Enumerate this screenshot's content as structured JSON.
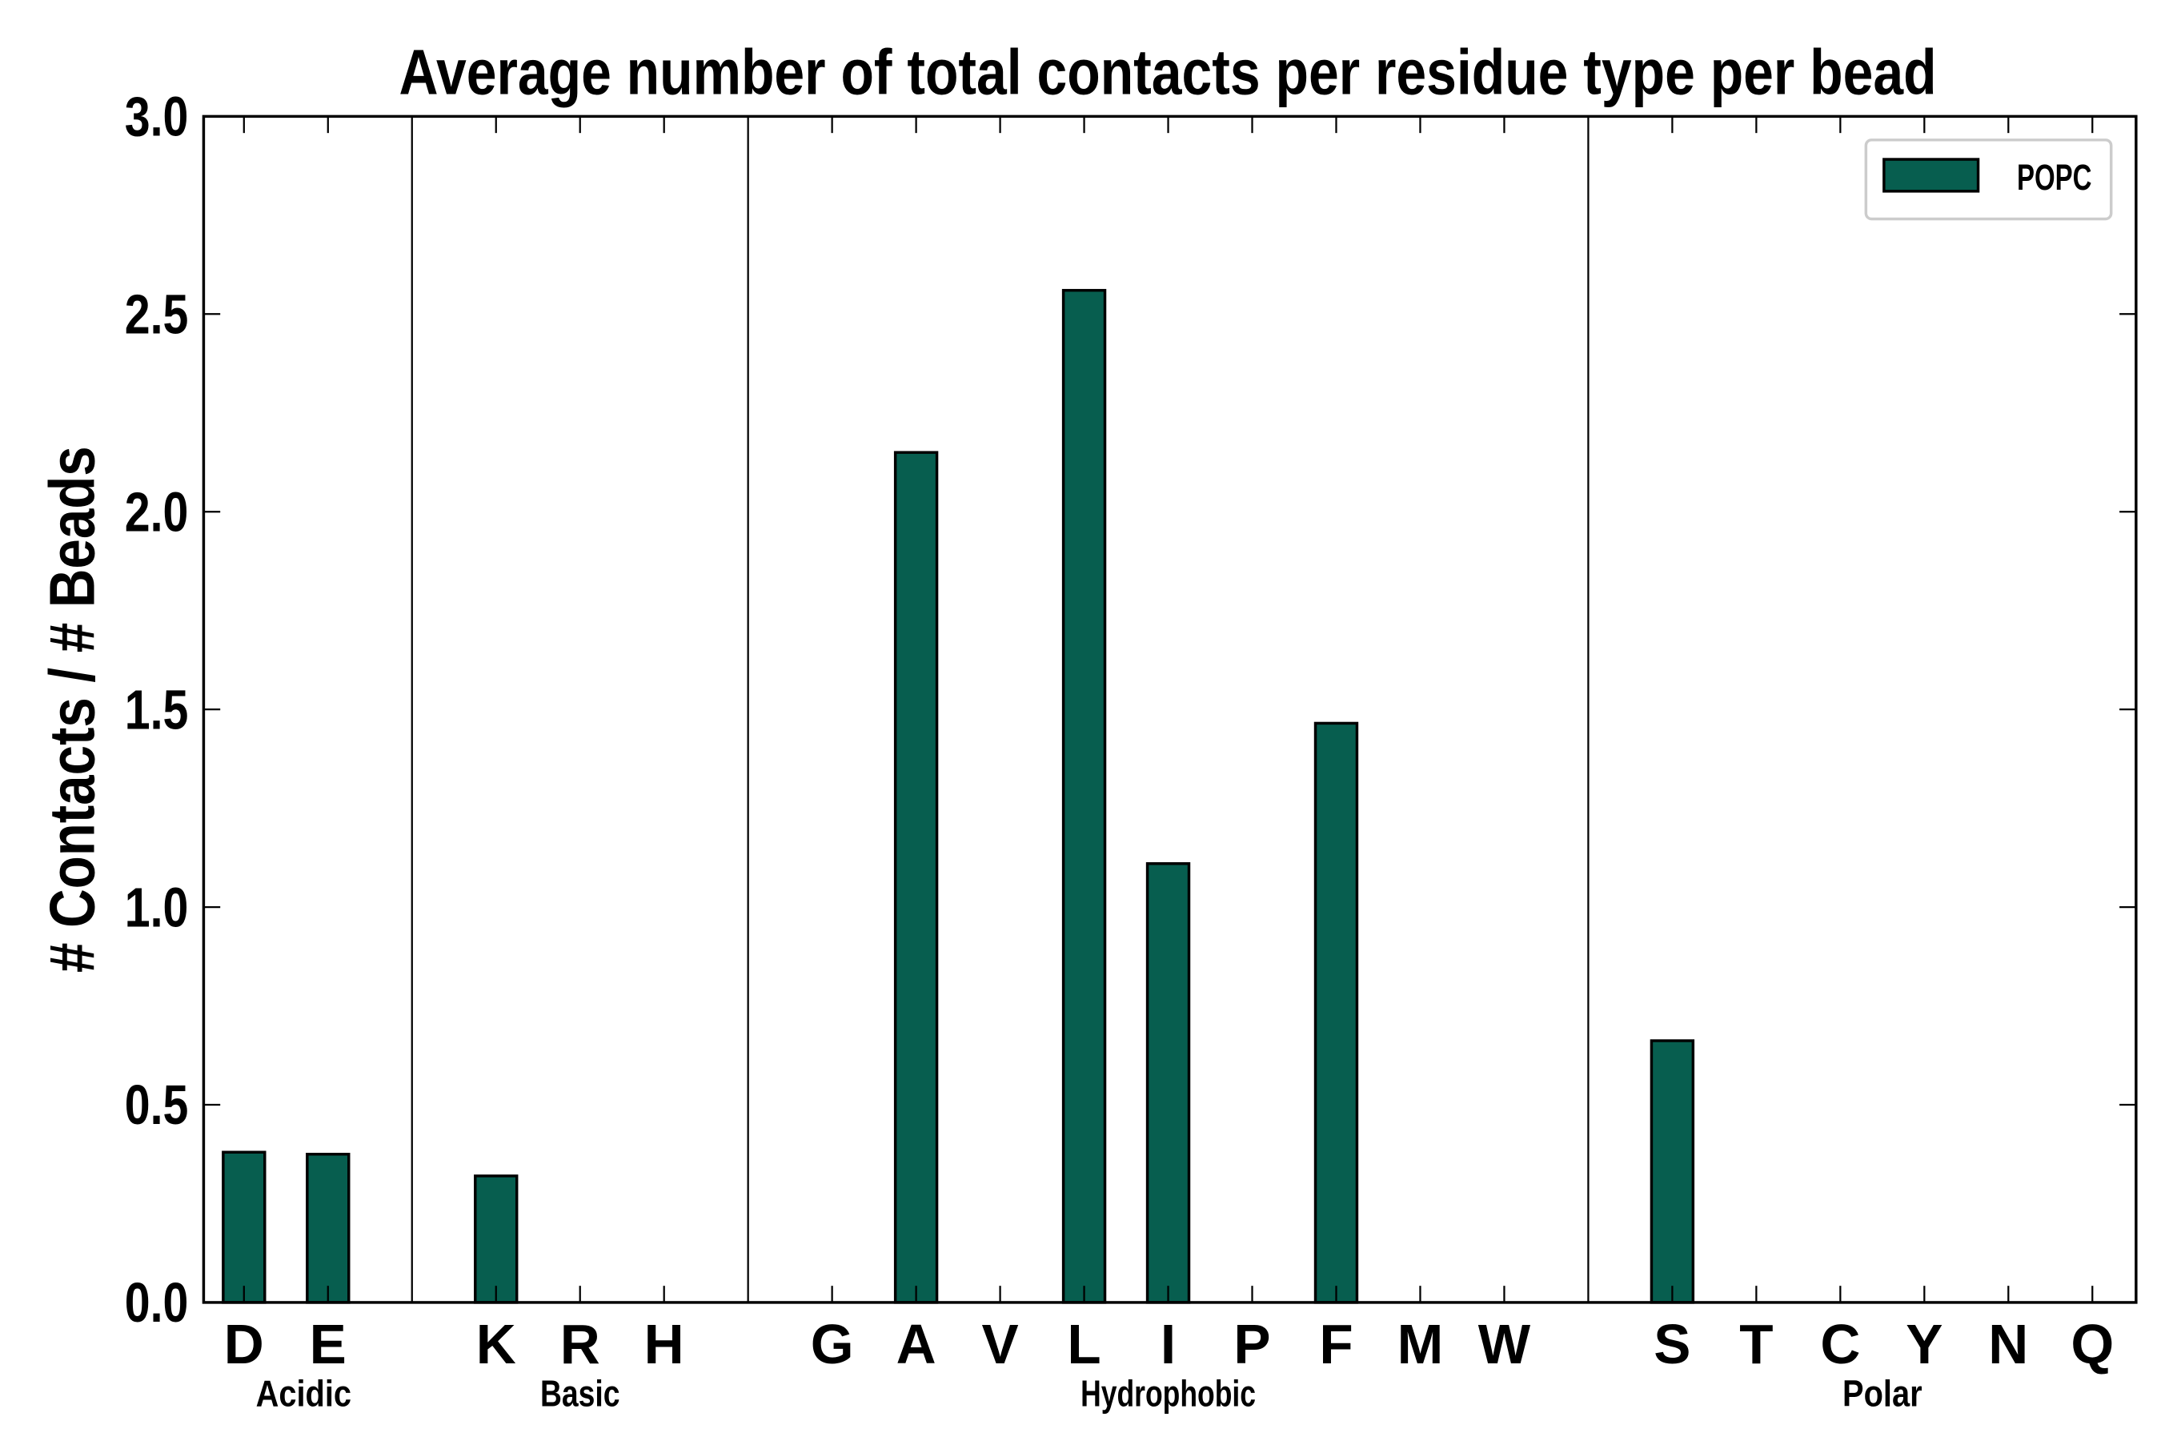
{
  "chart_data": {
    "type": "bar",
    "title": "Average number of total contacts per residue type per bead",
    "xlabel": "",
    "ylabel": "# Contacts / # Beads",
    "ylim": [
      0,
      3.0
    ],
    "yticks": [
      "0.0",
      "0.5",
      "1.0",
      "1.5",
      "2.0",
      "2.5",
      "3.0"
    ],
    "grid": false,
    "legend_position": "top-right",
    "bar_color": "#075e4f",
    "slots": [
      "D",
      "E",
      "",
      "K",
      "R",
      "H",
      "",
      "G",
      "A",
      "V",
      "L",
      "I",
      "P",
      "F",
      "M",
      "W",
      "",
      "S",
      "T",
      "C",
      "Y",
      "N",
      "Q"
    ],
    "categories": [
      "D",
      "E",
      "K",
      "R",
      "H",
      "G",
      "A",
      "V",
      "L",
      "I",
      "P",
      "F",
      "M",
      "W",
      "S",
      "T",
      "C",
      "Y",
      "N",
      "Q"
    ],
    "series": [
      {
        "name": "POPC",
        "values": [
          0.38,
          0.375,
          0.32,
          0,
          0,
          0,
          2.15,
          0,
          2.56,
          1.11,
          0,
          1.465,
          0,
          0,
          0.662,
          0,
          0,
          0,
          0,
          0
        ]
      }
    ],
    "groups": [
      {
        "label": "Acidic",
        "members": [
          "D",
          "E"
        ]
      },
      {
        "label": "Basic",
        "members": [
          "K",
          "R",
          "H"
        ]
      },
      {
        "label": "Hydrophobic",
        "members": [
          "G",
          "A",
          "V",
          "L",
          "I",
          "P",
          "F",
          "M",
          "W"
        ]
      },
      {
        "label": "Polar",
        "members": [
          "S",
          "T",
          "C",
          "Y",
          "N",
          "Q"
        ]
      }
    ]
  }
}
